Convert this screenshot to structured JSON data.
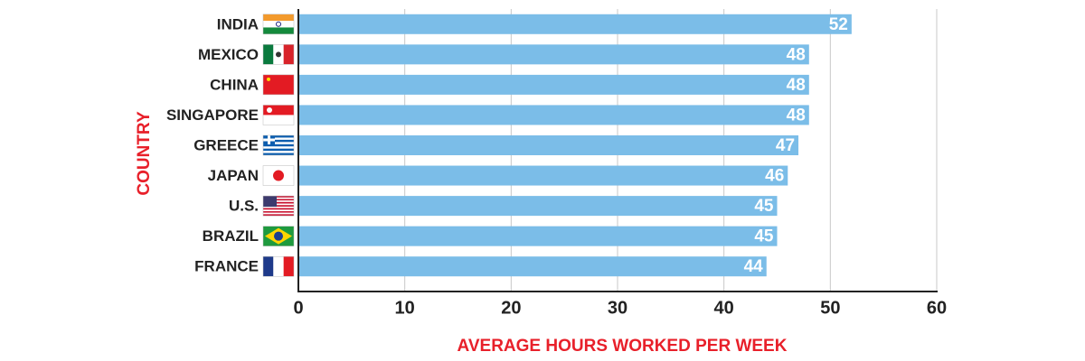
{
  "chart_data": {
    "type": "bar",
    "orientation": "horizontal",
    "categories": [
      "INDIA",
      "MEXICO",
      "CHINA",
      "SINGAPORE",
      "GREECE",
      "JAPAN",
      "U.S.",
      "BRAZIL",
      "FRANCE"
    ],
    "values": [
      52,
      48,
      48,
      48,
      47,
      46,
      45,
      45,
      44
    ],
    "color": "#7bbde8",
    "xlim": [
      0,
      60
    ],
    "xticks": [
      0,
      10,
      20,
      30,
      40,
      50,
      60
    ],
    "grid": true,
    "x_label": "AVERAGE HOURS WORKED PER WEEK",
    "y_label": "COUNTRY"
  }
}
